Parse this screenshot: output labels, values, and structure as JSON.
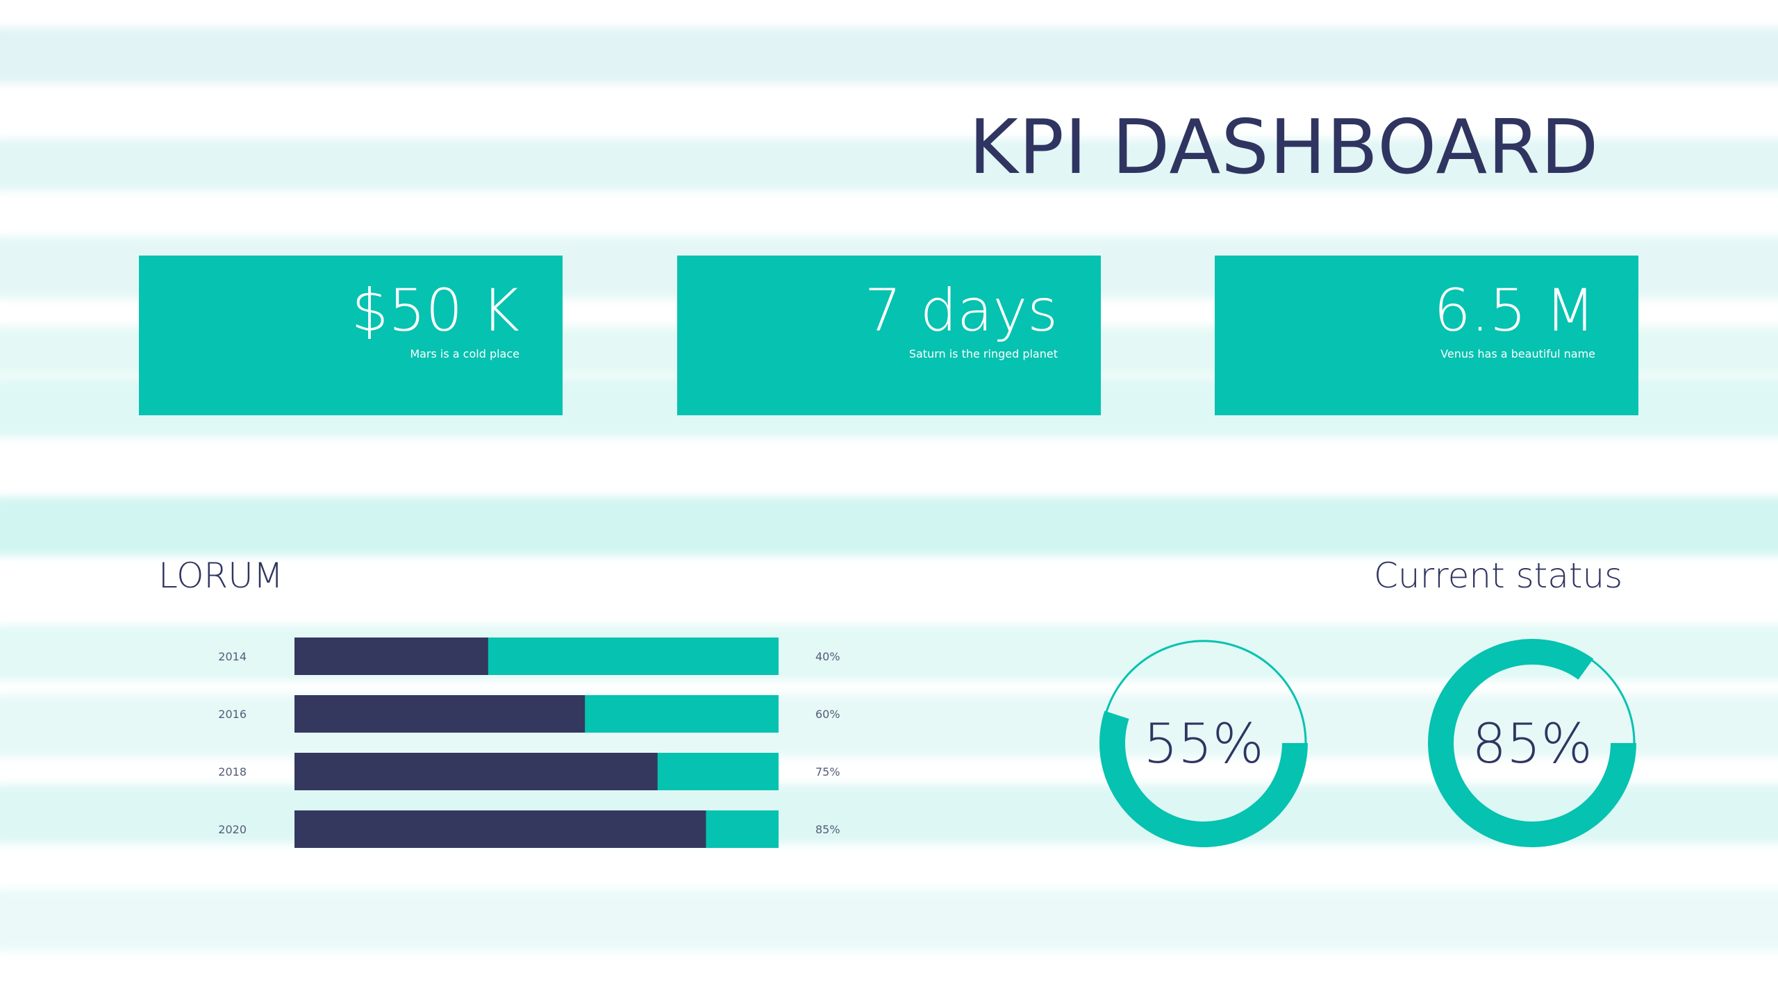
{
  "title": "KPI DASHBOARD",
  "colors": {
    "teal": "#06c2b0",
    "navy": "#34385e",
    "text": "#2f3560",
    "stripe": "#bfeee8"
  },
  "kpis": [
    {
      "value": "$50 K",
      "caption": "Mars is a cold place"
    },
    {
      "value": "7 days",
      "caption": "Saturn is the ringed planet"
    },
    {
      "value": "6.5 M",
      "caption": "Venus has a beautiful name"
    }
  ],
  "bars_title": "LORUM",
  "status_title": "Current status",
  "chart_data": [
    {
      "type": "bar",
      "orientation": "horizontal",
      "title": "LORUM",
      "categories": [
        "2014",
        "2016",
        "2018",
        "2020"
      ],
      "values": [
        40,
        60,
        75,
        85
      ],
      "value_labels": [
        "40%",
        "60%",
        "75%",
        "85%"
      ],
      "xlim": [
        0,
        100
      ]
    },
    {
      "type": "pie",
      "subtype": "donut",
      "title": "Current status",
      "items": [
        {
          "value": 55,
          "label": "55%"
        },
        {
          "value": 85,
          "label": "85%"
        }
      ]
    }
  ]
}
